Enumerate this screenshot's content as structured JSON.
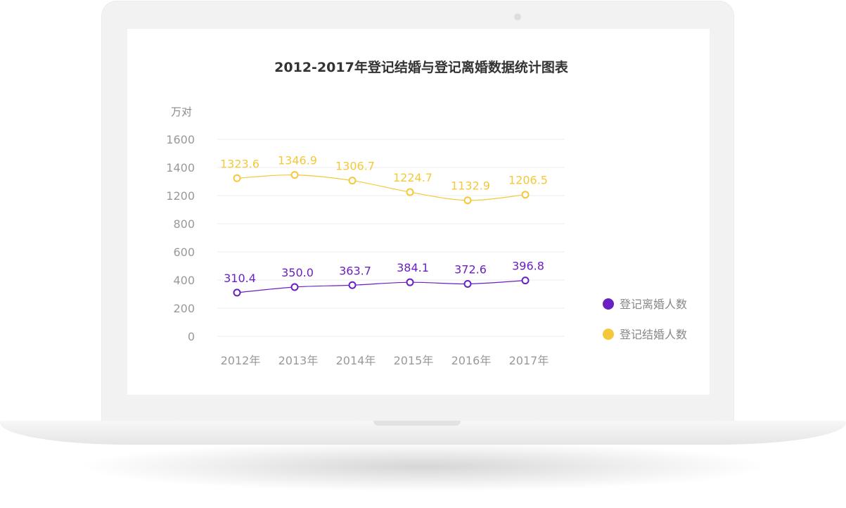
{
  "chart_data": {
    "type": "line",
    "title": "2012-2017年登记结婚与登记离婚数据统计图表",
    "ylabel": "万对",
    "xlabel": "",
    "categories": [
      "2012年",
      "2013年",
      "2014年",
      "2015年",
      "2016年",
      "2017年"
    ],
    "y_ticks": [
      "0",
      "200",
      "400",
      "600",
      "800",
      "1200",
      "1400",
      "1600"
    ],
    "series": [
      {
        "name": "登记离婚人数",
        "color": "#6a1fc2",
        "values": [
          310.4,
          350.0,
          363.7,
          384.1,
          372.6,
          396.8
        ],
        "labels": [
          "310.4",
          "350.0",
          "363.7",
          "384.1",
          "372.6",
          "396.8"
        ]
      },
      {
        "name": "登记结婚人数",
        "color": "#f5c83a",
        "values": [
          1323.6,
          1346.9,
          1306.7,
          1224.7,
          1132.9,
          1206.5
        ],
        "labels": [
          "1323.6",
          "1346.9",
          "1306.7",
          "1224.7",
          "1132.9",
          "1206.5"
        ]
      }
    ],
    "grid": true,
    "legend_position": "right"
  }
}
